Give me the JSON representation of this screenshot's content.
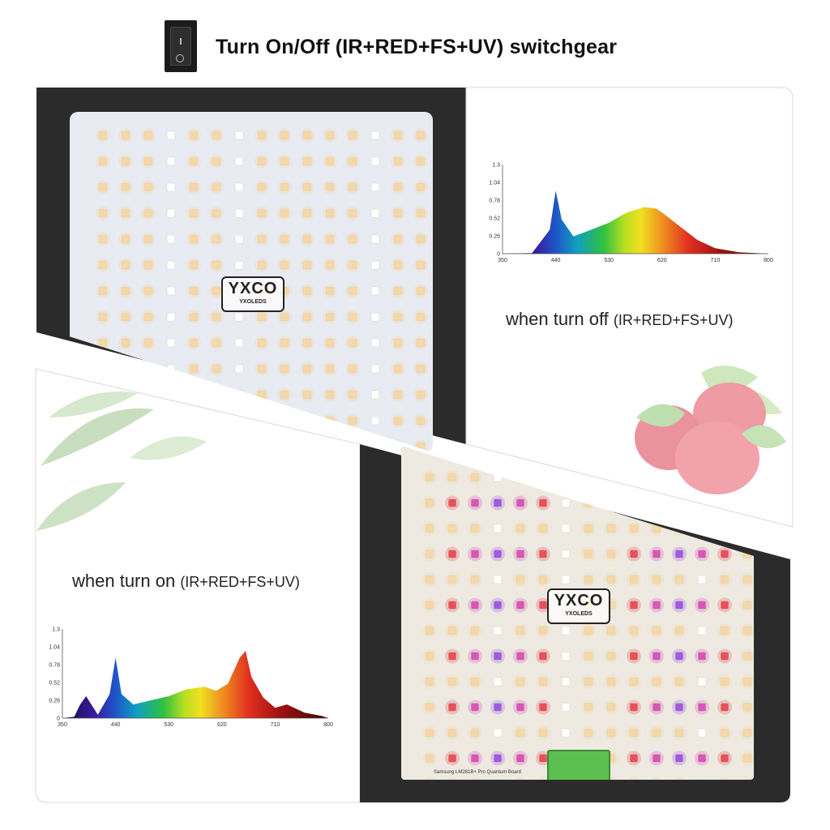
{
  "header": {
    "title": "Turn On/Off (IR+RED+FS+UV) switchgear",
    "switch_mark_on": "I",
    "switch_mark_off": "O"
  },
  "off_panel": {
    "caption_main": "when turn off ",
    "caption_sub": "(IR+RED+FS+UV)",
    "logo_text": "YXCO",
    "logo_subtext": "YXOLEDS"
  },
  "on_panel": {
    "caption_main": "when turn on ",
    "caption_sub": "(IR+RED+FS+UV)",
    "logo_text": "YXCO",
    "logo_subtext": "YXOLEDS",
    "board_label": "Samsung LM281B+ Pro Quantum Board"
  },
  "chart_data": [
    {
      "type": "area",
      "x": [
        350,
        400,
        430,
        440,
        450,
        470,
        500,
        530,
        560,
        590,
        610,
        620,
        650,
        680,
        710,
        750,
        800
      ],
      "y": [
        0,
        0.01,
        0.35,
        0.92,
        0.5,
        0.25,
        0.35,
        0.45,
        0.6,
        0.68,
        0.66,
        0.6,
        0.4,
        0.2,
        0.08,
        0.02,
        0
      ],
      "xticks": [
        "350",
        "440",
        "530",
        "620",
        "710",
        "800"
      ],
      "yticks": [
        "0",
        "0.26",
        "0.52",
        "0.78",
        "1.04",
        "1.3"
      ],
      "xlim": [
        350,
        800
      ],
      "ylim": [
        0,
        1.3
      ]
    },
    {
      "type": "area",
      "x": [
        350,
        370,
        380,
        390,
        410,
        430,
        440,
        450,
        470,
        500,
        530,
        560,
        590,
        610,
        630,
        650,
        660,
        670,
        690,
        710,
        730,
        760,
        790,
        800
      ],
      "y": [
        0,
        0.02,
        0.2,
        0.32,
        0.05,
        0.35,
        0.88,
        0.35,
        0.2,
        0.26,
        0.32,
        0.42,
        0.46,
        0.4,
        0.5,
        0.88,
        0.98,
        0.6,
        0.3,
        0.15,
        0.2,
        0.08,
        0.03,
        0
      ],
      "xticks": [
        "350",
        "440",
        "530",
        "620",
        "710",
        "800"
      ],
      "yticks": [
        "0",
        "0.26",
        "0.52",
        "0.78",
        "1.04",
        "1.3"
      ],
      "xlim": [
        350,
        800
      ],
      "ylim": [
        0,
        1.3
      ]
    }
  ]
}
